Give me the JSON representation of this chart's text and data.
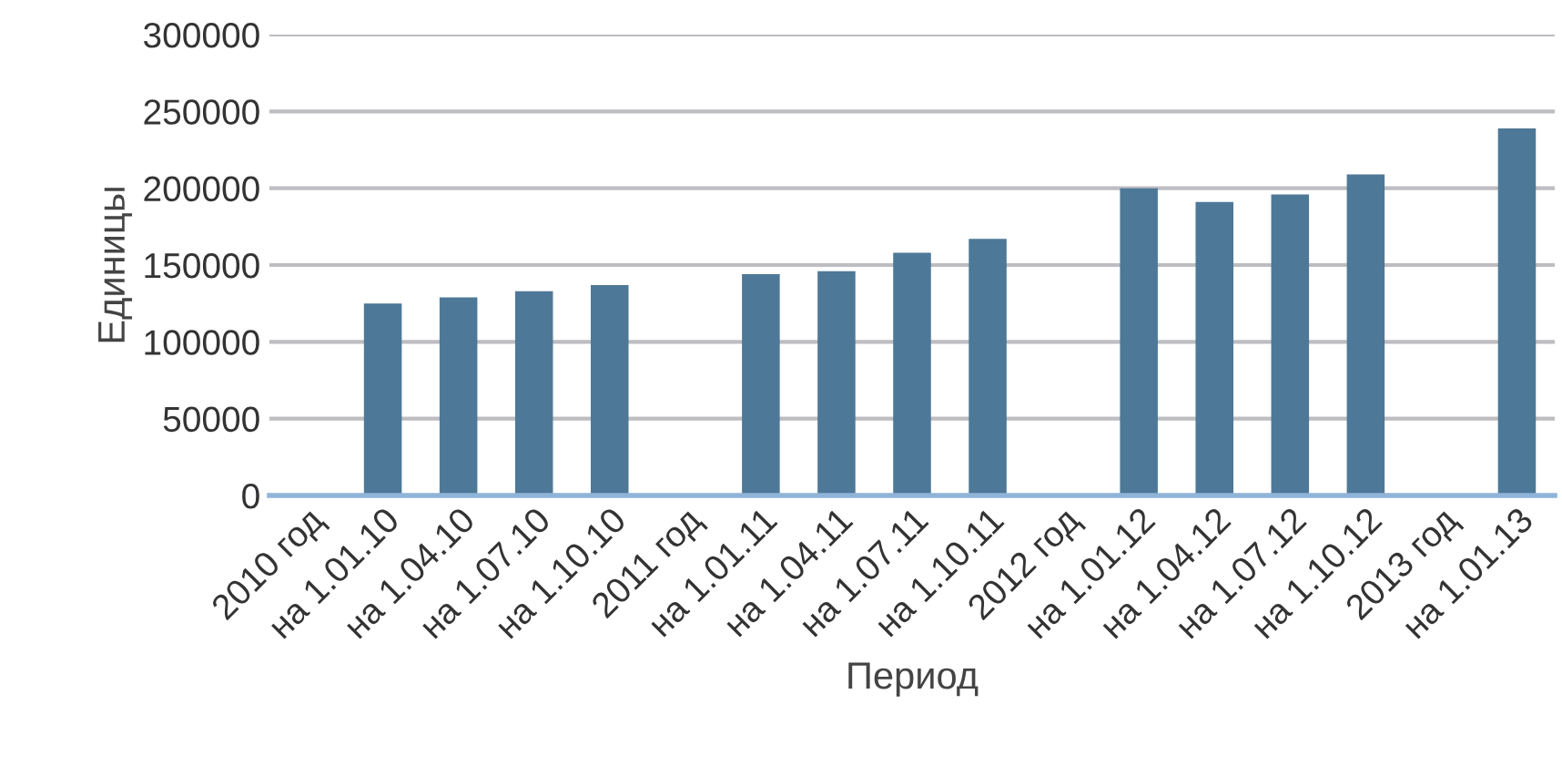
{
  "chart_data": {
    "type": "bar",
    "xlabel": "Период",
    "ylabel": "Единицы",
    "categories": [
      "2010 год",
      "на 1.01.10",
      "на 1.04.10",
      "на 1.07.10",
      "на 1.10.10",
      "2011 год",
      "на 1.01.11",
      "на 1.04.11",
      "на 1.07.11",
      "на 1.10.11",
      "2012 год",
      "на 1.01.12",
      "на 1.04.12",
      "на 1.07.12",
      "на 1.10.12",
      "2013 год",
      "на 1.01.13"
    ],
    "values": [
      null,
      125000,
      129000,
      133000,
      137000,
      null,
      144000,
      146000,
      158000,
      167000,
      null,
      200000,
      191000,
      196000,
      209000,
      null,
      239000
    ],
    "color": "#4e7897",
    "ylim": [
      0,
      300000
    ],
    "yticks": [
      0,
      50000,
      100000,
      150000,
      200000,
      250000,
      300000
    ],
    "grid": "y"
  }
}
